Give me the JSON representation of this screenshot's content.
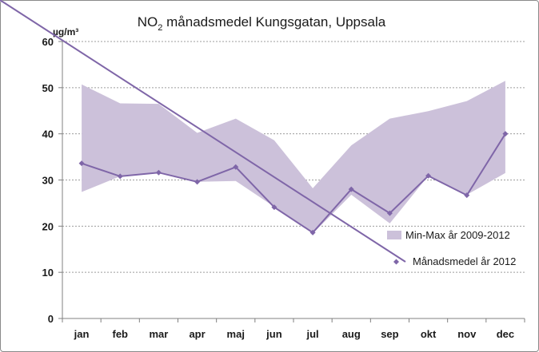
{
  "chart_data": {
    "type": "line",
    "title_main": "NO",
    "title_sub": "2",
    "title_rest": " månadsmedel Kungsgatan, Uppsala",
    "ylabel": "µg/m³",
    "xlabel": "",
    "ylim": [
      0,
      60
    ],
    "yticks": [
      0,
      10,
      20,
      30,
      40,
      50,
      60
    ],
    "grid": true,
    "legend_position": "right",
    "categories": [
      "jan",
      "feb",
      "mar",
      "apr",
      "maj",
      "jun",
      "jul",
      "aug",
      "sep",
      "okt",
      "nov",
      "dec"
    ],
    "band": {
      "name": "Min-Max år 2009-2012",
      "color": "#ccc1da",
      "min": [
        27.4,
        30.8,
        31.6,
        29.6,
        29.8,
        24.2,
        18.4,
        26.8,
        20.6,
        30.9,
        26.8,
        31.5
      ],
      "max": [
        50.7,
        46.6,
        46.5,
        40.2,
        43.3,
        38.6,
        28.2,
        37.5,
        43.3,
        44.9,
        47.1,
        51.5
      ]
    },
    "series": [
      {
        "name": "Månadsmedel år 2012",
        "color": "#7f66a8",
        "values": [
          33.6,
          30.8,
          31.6,
          29.6,
          32.8,
          24.1,
          18.6,
          28.0,
          22.8,
          30.9,
          26.7,
          40.0
        ]
      }
    ]
  }
}
